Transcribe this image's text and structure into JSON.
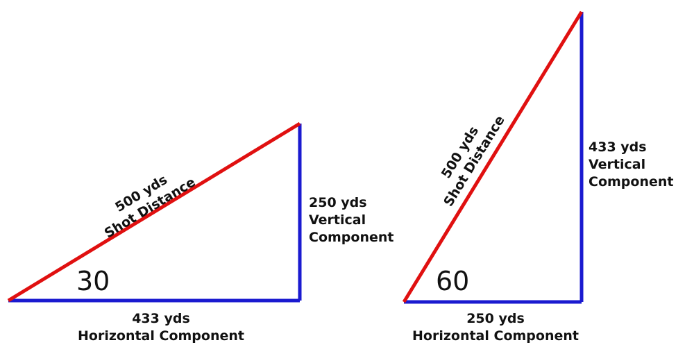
{
  "triangles": [
    {
      "angle": "30",
      "hypotenuse": [
        "500 yds",
        "Shot Distance"
      ],
      "vertical": [
        "250 yds",
        "Vertical",
        "Component"
      ],
      "horizontal": [
        "433 yds",
        "Horizontal Component"
      ]
    },
    {
      "angle": "60",
      "hypotenuse": [
        "500 yds",
        "Shot Distance"
      ],
      "vertical": [
        "433 yds",
        "Vertical",
        "Component"
      ],
      "horizontal": [
        "250 yds",
        "Horizontal Component"
      ]
    }
  ]
}
